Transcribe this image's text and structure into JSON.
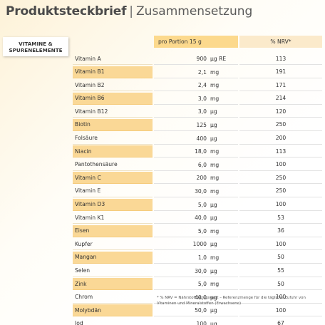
{
  "header": {
    "title_bold": "Produktsteckbrief",
    "separator": "|",
    "title_light": "Zusammensetzung"
  },
  "badge": {
    "line1": "VITAMINE &",
    "line2": "SPURENELEMENTE"
  },
  "columns": {
    "portion": "pro Portion 15 g",
    "nrv": "% NRV*"
  },
  "colors": {
    "highlight": "#fad896",
    "header_portion": "#fcd98d",
    "header_nrv": "#fbeacb"
  },
  "rows": [
    {
      "name": "Vitamin A",
      "amount": "900",
      "unit": "µg RE",
      "nrv": "113",
      "highlight": false
    },
    {
      "name": "Vitamin B1",
      "amount": "2,1",
      "unit": "mg",
      "nrv": "191",
      "highlight": true
    },
    {
      "name": "Vitamin B2",
      "amount": "2,4",
      "unit": "mg",
      "nrv": "171",
      "highlight": false
    },
    {
      "name": "Vitamin B6",
      "amount": "3,0",
      "unit": "mg",
      "nrv": "214",
      "highlight": true
    },
    {
      "name": "Vitamin B12",
      "amount": "3,0",
      "unit": "µg",
      "nrv": "120",
      "highlight": false
    },
    {
      "name": "Biotin",
      "amount": "125",
      "unit": "µg",
      "nrv": "250",
      "highlight": true
    },
    {
      "name": "Folsäure",
      "amount": "400",
      "unit": "µg",
      "nrv": "200",
      "highlight": false
    },
    {
      "name": "Niacin",
      "amount": "18,0",
      "unit": "mg",
      "nrv": "113",
      "highlight": true
    },
    {
      "name": "Pantothensäure",
      "amount": "6,0",
      "unit": "mg",
      "nrv": "100",
      "highlight": false
    },
    {
      "name": "Vitamin C",
      "amount": "200",
      "unit": "mg",
      "nrv": "250",
      "highlight": true
    },
    {
      "name": "Vitamin E",
      "amount": "30,0",
      "unit": "mg",
      "nrv": "250",
      "highlight": false
    },
    {
      "name": "Vitamin D3",
      "amount": "5,0",
      "unit": "µg",
      "nrv": "100",
      "highlight": true
    },
    {
      "name": "Vitamin K1",
      "amount": "40,0",
      "unit": "µg",
      "nrv": "53",
      "highlight": false
    },
    {
      "name": "Eisen",
      "amount": "5,0",
      "unit": "mg",
      "nrv": "36",
      "highlight": true
    },
    {
      "name": "Kupfer",
      "amount": "1000",
      "unit": "µg",
      "nrv": "100",
      "highlight": false
    },
    {
      "name": "Mangan",
      "amount": "1,0",
      "unit": "mg",
      "nrv": "50",
      "highlight": true
    },
    {
      "name": "Selen",
      "amount": "30,0",
      "unit": "µg",
      "nrv": "55",
      "highlight": false
    },
    {
      "name": "Zink",
      "amount": "5,0",
      "unit": "mg",
      "nrv": "50",
      "highlight": true
    },
    {
      "name": "Chrom",
      "amount": "40,0",
      "unit": "µg",
      "nrv": "100",
      "highlight": false
    },
    {
      "name": "Molybdän",
      "amount": "50,0",
      "unit": "µg",
      "nrv": "100",
      "highlight": true
    },
    {
      "name": "Jod",
      "amount": "100",
      "unit": "µg",
      "nrv": "67",
      "highlight": false
    }
  ],
  "footnote": {
    "line1": "* % NRV = Nährstoffbezugswert – Referenzmenge für die tägliche Zufuhr von",
    "line2": "Vitaminen und Mineralstoffen (Erwachsene)"
  }
}
